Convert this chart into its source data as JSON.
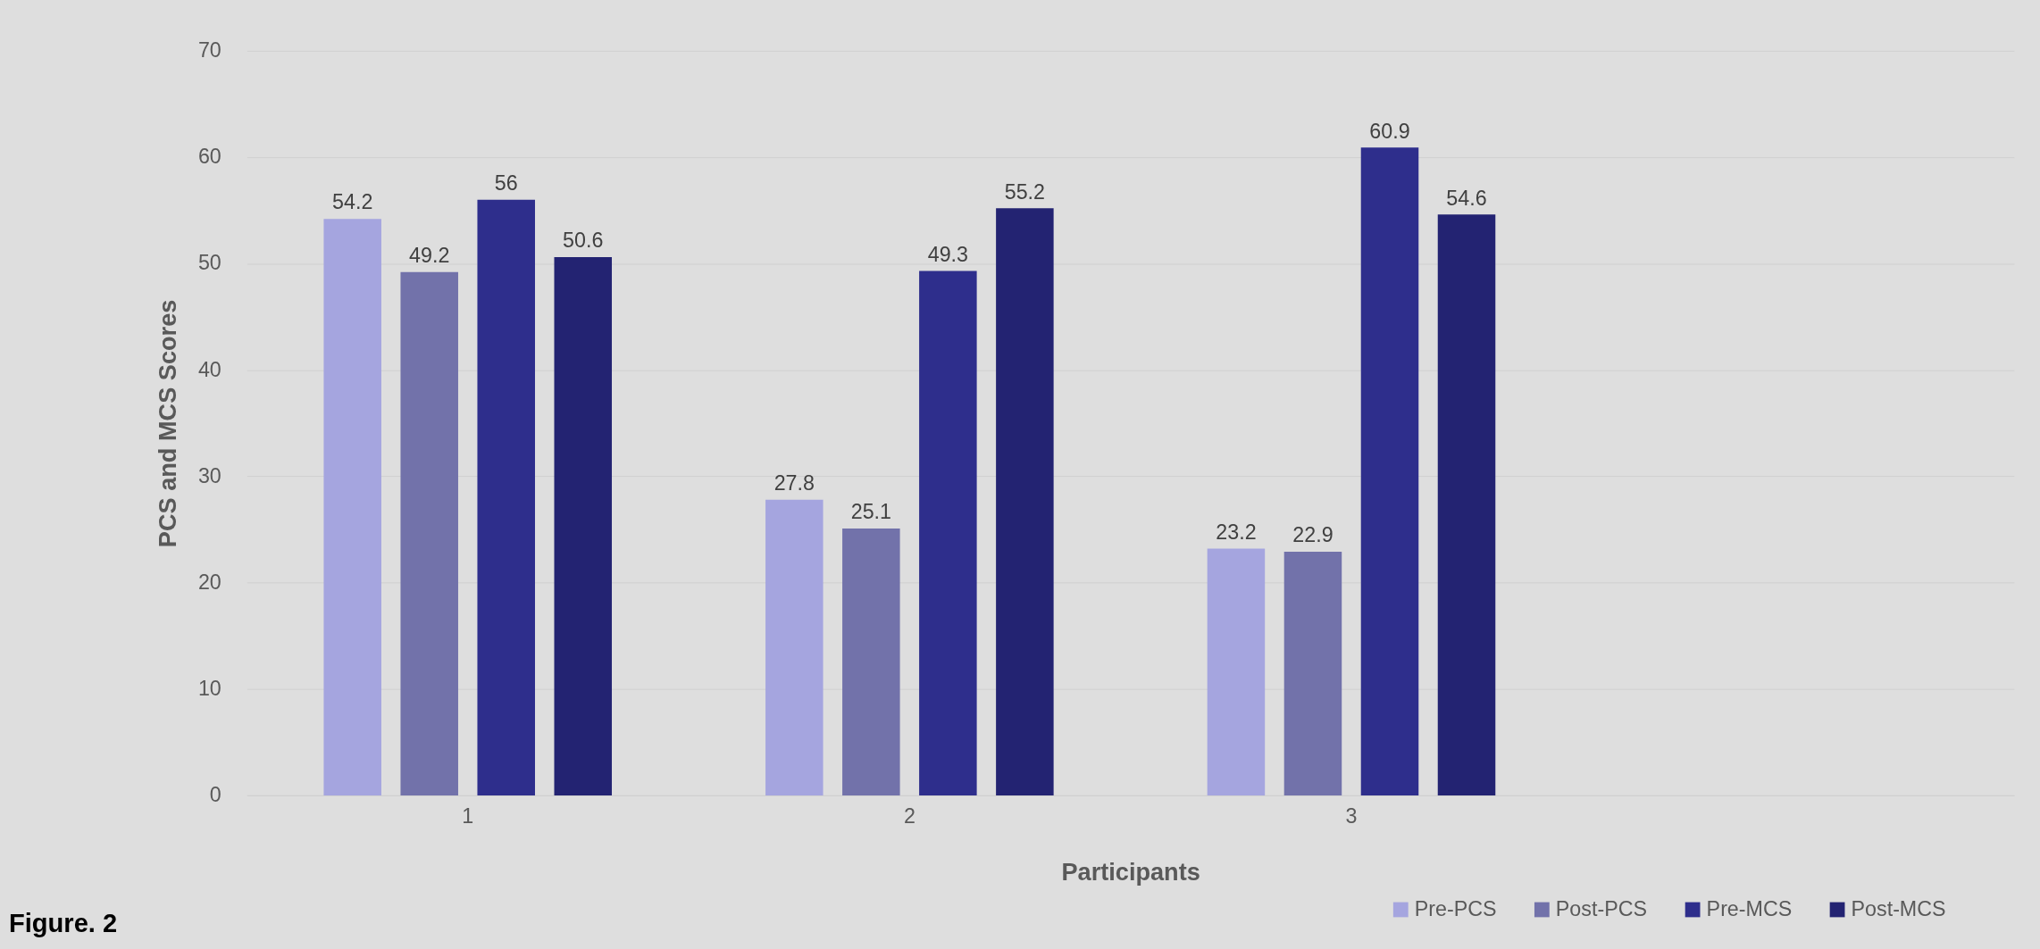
{
  "chart_data": {
    "type": "bar",
    "xlabel": "Participants",
    "ylabel": "PCS and MCS Scores",
    "annotations": [
      "Figure. 2"
    ],
    "categories": [
      "1",
      "2",
      "3",
      null
    ],
    "series": [
      {
        "name": "Pre-PCS",
        "color": "#a5a5df",
        "values": [
          54.2,
          27.8,
          23.2,
          null
        ]
      },
      {
        "name": "Post-PCS",
        "color": "#7272aa",
        "values": [
          49.2,
          25.1,
          22.9,
          null
        ]
      },
      {
        "name": "Pre-MCS",
        "color": "#2e2e8c",
        "values": [
          56,
          49.3,
          60.9,
          null
        ]
      },
      {
        "name": "Post-MCS",
        "color": "#232372",
        "values": [
          50.6,
          55.2,
          54.6,
          null
        ]
      }
    ],
    "ylim": [
      0,
      70
    ],
    "yticks": [
      0,
      10,
      20,
      30,
      40,
      50,
      60,
      70
    ],
    "grid": "y",
    "legend": "bottom right",
    "data_labels": true
  }
}
